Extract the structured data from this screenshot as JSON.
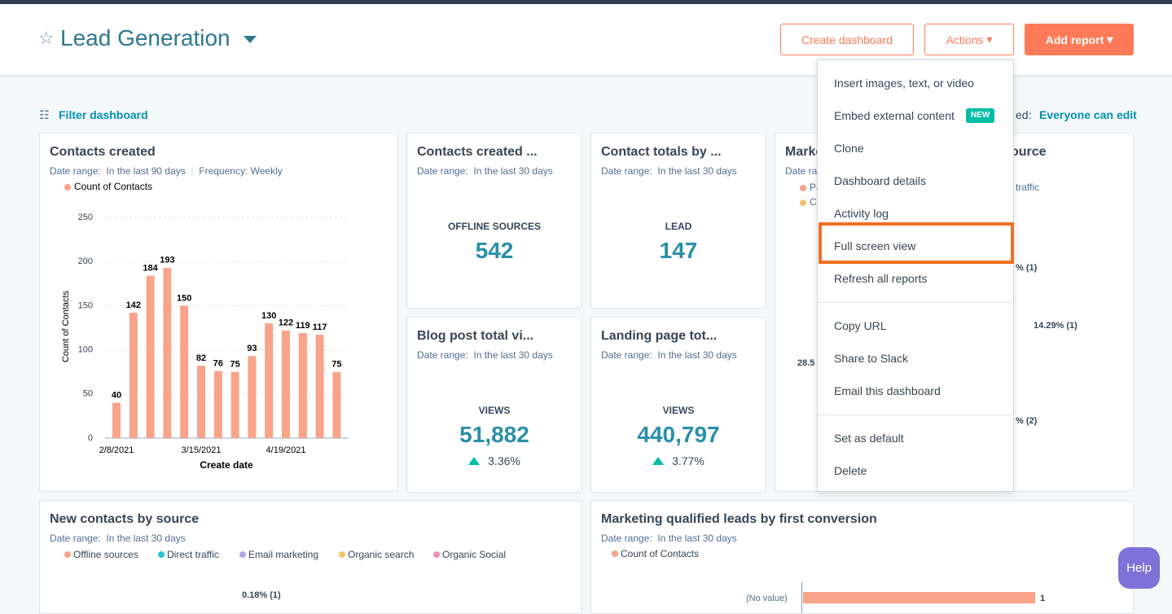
{
  "header": {
    "title": "Lead Generation",
    "create": "Create dashboard",
    "actions": "Actions",
    "add": "Add report"
  },
  "toolbar": {
    "filter": "Filter dashboard",
    "access_prefix": "ed:",
    "access": "Everyone can edit"
  },
  "chart_data": {
    "type": "bar",
    "title": "Contacts created",
    "date_range": "Date range:  In the last 90 days",
    "frequency": "Frequency: Weekly",
    "categories": [
      "2/8/2021",
      null,
      null,
      null,
      null,
      "3/15/2021",
      null,
      null,
      null,
      null,
      "4/19/2021",
      null,
      null,
      null
    ],
    "series": [
      {
        "name": "Count of Contacts",
        "color": "#f8a38a",
        "values": [
          40,
          142,
          184,
          193,
          150,
          82,
          76,
          75,
          93,
          130,
          122,
          119,
          117,
          75
        ]
      }
    ],
    "ylim": [
      0,
      250
    ],
    "yticks": [
      0,
      50,
      100,
      150,
      200,
      250
    ],
    "y_label": "Count of Contacts",
    "x_label": "Create date",
    "grid": true
  },
  "kpis": [
    {
      "title": "Contacts created ...",
      "date_range": "Date range:  In the last 30 days",
      "metric": "OFFLINE SOURCES",
      "value": "542"
    },
    {
      "title": "Contact totals by ...",
      "date_range": "Date range:  In the last 30 days",
      "metric": "LEAD",
      "value": "147"
    },
    {
      "title": "Blog post total vi...",
      "date_range": "Date range:  In the last 30 days",
      "metric": "VIEWS",
      "value": "51,882",
      "change": "3.36%"
    },
    {
      "title": "Landing page tot...",
      "date_range": "Date range:  In the last 30 days",
      "metric": "VIEWS",
      "value": "440,797",
      "change": "3.77%"
    }
  ],
  "hidden_card": {
    "fragments": [
      "Marke",
      "Date ra",
      "Pa",
      "C",
      "ource",
      "traffic",
      "% (1)",
      "14.29% (1)",
      "28.5",
      "% (2)"
    ]
  },
  "bottom_left": {
    "title": "New contacts by source",
    "date_range": "Date range:  In the last 30 days",
    "legend": [
      {
        "name": "Offline sources",
        "color": "#f8a38a"
      },
      {
        "name": "Direct traffic",
        "color": "#25c1d3"
      },
      {
        "name": "Email marketing",
        "color": "#b9a3e6"
      },
      {
        "name": "Organic search",
        "color": "#f5c26b"
      },
      {
        "name": "Organic Social",
        "color": "#ea90b1"
      }
    ],
    "label": "0.18% (1)"
  },
  "bottom_right": {
    "title": "Marketing qualified leads by first conversion",
    "date_range": "Date range:  In the last 30 days",
    "legend": "Count of Contacts",
    "category": "(No value)",
    "value": "1"
  },
  "menu": {
    "groups": [
      [
        "Insert images, text, or video",
        "Embed external content",
        "Clone",
        "Dashboard details",
        "Activity log",
        "Full screen view",
        "Refresh all reports"
      ],
      [
        "Copy URL",
        "Share to Slack",
        "Email this dashboard"
      ],
      [
        "Set as default",
        "Delete"
      ]
    ],
    "badge": "NEW"
  },
  "help": "Help"
}
